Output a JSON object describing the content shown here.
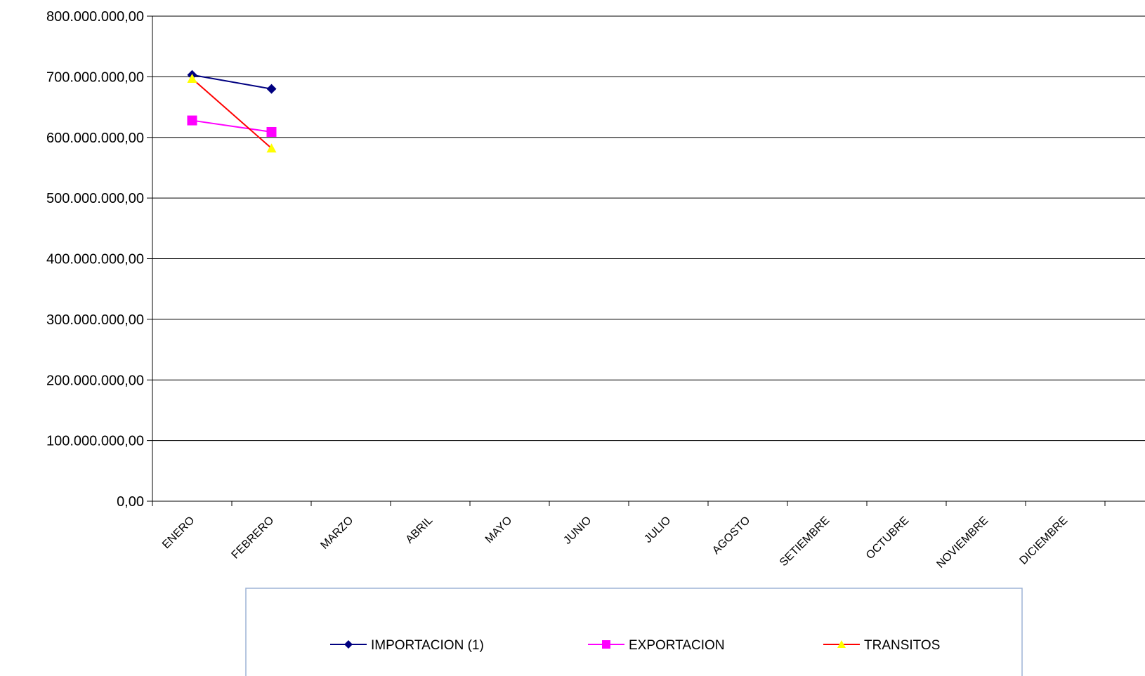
{
  "chart_data": {
    "type": "line",
    "categories": [
      "ENERO",
      "FEBRERO",
      "MARZO",
      "ABRIL",
      "MAYO",
      "JUNIO",
      "JULIO",
      "AGOSTO",
      "SETIEMBRE",
      "OCTUBRE",
      "NOVIEMBRE",
      "DICIEMBRE"
    ],
    "series": [
      {
        "name": "IMPORTACION  (1)",
        "color": "#000080",
        "marker": "diamond",
        "values": [
          703000000,
          680000000,
          null,
          null,
          null,
          null,
          null,
          null,
          null,
          null,
          null,
          null
        ]
      },
      {
        "name": "EXPORTACION",
        "color": "#FF00FF",
        "marker": "square",
        "values": [
          628000000,
          609000000,
          null,
          null,
          null,
          null,
          null,
          null,
          null,
          null,
          null,
          null
        ]
      },
      {
        "name": "TRANSITOS",
        "color": "#FF0000",
        "marker_color": "#FFFF00",
        "marker": "triangle",
        "values": [
          697000000,
          582000000,
          null,
          null,
          null,
          null,
          null,
          null,
          null,
          null,
          null,
          null
        ]
      }
    ],
    "ylim": [
      0,
      800000000
    ],
    "yticks": [
      0,
      100000000,
      200000000,
      300000000,
      400000000,
      500000000,
      600000000,
      700000000,
      800000000
    ],
    "ytick_labels": [
      "0,00",
      "100.000.000,00",
      "200.000.000,00",
      "300.000.000,00",
      "400.000.000,00",
      "500.000.000,00",
      "600.000.000,00",
      "700.000.000,00",
      "800.000.000,00"
    ],
    "grid": true,
    "legend": "bottom",
    "title": "",
    "xlabel": "",
    "ylabel": ""
  }
}
